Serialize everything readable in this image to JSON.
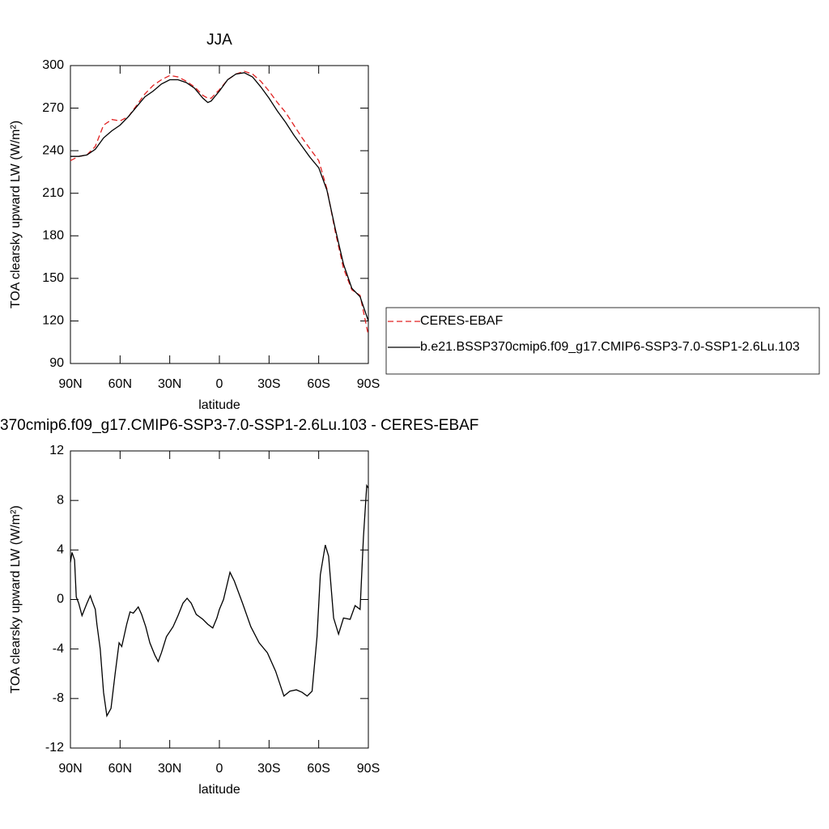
{
  "chart_data": [
    {
      "type": "line",
      "title": "JJA",
      "xlabel": "latitude",
      "ylabel": "TOA clearsky upward LW (W/m²)",
      "x": [
        90,
        85,
        80,
        75,
        70,
        65,
        60,
        55,
        50,
        45,
        40,
        35,
        30,
        25,
        20,
        15,
        10,
        7,
        5,
        0,
        -5,
        -10,
        -15,
        -20,
        -25,
        -30,
        -35,
        -40,
        -45,
        -50,
        -55,
        -60,
        -65,
        -70,
        -75,
        -80,
        -85,
        -90
      ],
      "series": [
        {
          "name": "CERES-EBAF",
          "color": "#e02020",
          "dash": true,
          "values": [
            233,
            236,
            237,
            243,
            258,
            262,
            261,
            264,
            272,
            280,
            286,
            290,
            293,
            292,
            289,
            285,
            279,
            277,
            277,
            283,
            290,
            294,
            296,
            294,
            289,
            282,
            274,
            267,
            258,
            249,
            241,
            233,
            213,
            183,
            157,
            142,
            138,
            110
          ]
        },
        {
          "name": "b.e21.BSSP370cmip6.f09_g17.CMIP6-SSP3-7.0-SSP1-2.6Lu.103",
          "color": "#000000",
          "dash": false,
          "values": [
            236,
            236,
            237,
            241,
            249,
            254,
            258,
            264,
            271,
            278,
            282,
            287,
            290,
            290,
            288,
            284,
            277,
            274,
            275,
            282,
            290,
            294,
            295,
            292,
            285,
            277,
            268,
            260,
            251,
            243,
            235,
            228,
            212,
            185,
            160,
            143,
            137,
            120
          ]
        }
      ],
      "xlim": [
        90,
        -90
      ],
      "xticks": [
        {
          "value": 90,
          "label": "90N"
        },
        {
          "value": 60,
          "label": "60N"
        },
        {
          "value": 30,
          "label": "30N"
        },
        0,
        {
          "value": -30,
          "label": "30S"
        },
        {
          "value": -60,
          "label": "60S"
        },
        {
          "value": -90,
          "label": "90S"
        }
      ],
      "ylim": [
        90,
        300
      ],
      "yticks": [
        90,
        120,
        150,
        180,
        210,
        240,
        270,
        300
      ],
      "legend": "right"
    },
    {
      "type": "line",
      "title": "370cmip6.f09_g17.CMIP6-SSP3-7.0-SSP1-2.6Lu.103 - CERES-EBAF",
      "xlabel": "latitude",
      "ylabel": "TOA clearsky upward LW (W/m²)",
      "x": [
        90,
        89,
        87.5,
        86.5,
        85,
        83,
        80,
        78,
        77,
        75,
        74,
        72,
        70,
        68,
        65.5,
        63,
        60.6,
        59,
        56,
        54,
        52,
        49,
        47,
        44.5,
        42,
        39,
        37,
        35,
        32,
        28,
        25,
        22,
        19.5,
        17,
        14,
        10,
        7,
        4,
        1.5,
        0,
        -2.5,
        -6.4,
        -9,
        -14,
        -19,
        -24,
        -29,
        -34,
        -39,
        -42.6,
        -46.5,
        -50,
        -53,
        -56,
        -59,
        -61,
        -64,
        -66,
        -69,
        -72,
        -75,
        -79,
        -82,
        -85,
        -87,
        -89,
        -90
      ],
      "values": [
        3.0,
        3.8,
        3.2,
        0.2,
        -0.3,
        -1.3,
        -0.3,
        0.3,
        -0.1,
        -0.8,
        -2,
        -4,
        -7.5,
        -9.4,
        -8.8,
        -6,
        -3.5,
        -3.8,
        -2,
        -1,
        -1.1,
        -0.6,
        -1.2,
        -2.2,
        -3.5,
        -4.5,
        -5,
        -4.3,
        -3,
        -2.2,
        -1.3,
        -0.3,
        0.1,
        -0.3,
        -1.2,
        -1.6,
        -2.0,
        -2.3,
        -1.5,
        -0.8,
        0,
        2.2,
        1.5,
        -0.3,
        -2.2,
        -3.5,
        -4.3,
        -5.8,
        -7.8,
        -7.4,
        -7.3,
        -7.5,
        -7.8,
        -7.4,
        -3,
        2,
        4.4,
        3.5,
        -1.5,
        -2.8,
        -1.5,
        -1.6,
        -0.5,
        -0.8,
        5,
        9.2,
        9
      ],
      "color": "#000000",
      "xlim": [
        90,
        -90
      ],
      "xticks": [
        {
          "value": 90,
          "label": "90N"
        },
        {
          "value": 60,
          "label": "60N"
        },
        {
          "value": 30,
          "label": "30N"
        },
        0,
        {
          "value": -30,
          "label": "30S"
        },
        {
          "value": -60,
          "label": "60S"
        },
        {
          "value": -90,
          "label": "90S"
        }
      ],
      "ylim": [
        -12,
        12
      ],
      "yticks": [
        -12,
        -8,
        -4,
        0,
        4,
        8,
        12
      ]
    }
  ]
}
